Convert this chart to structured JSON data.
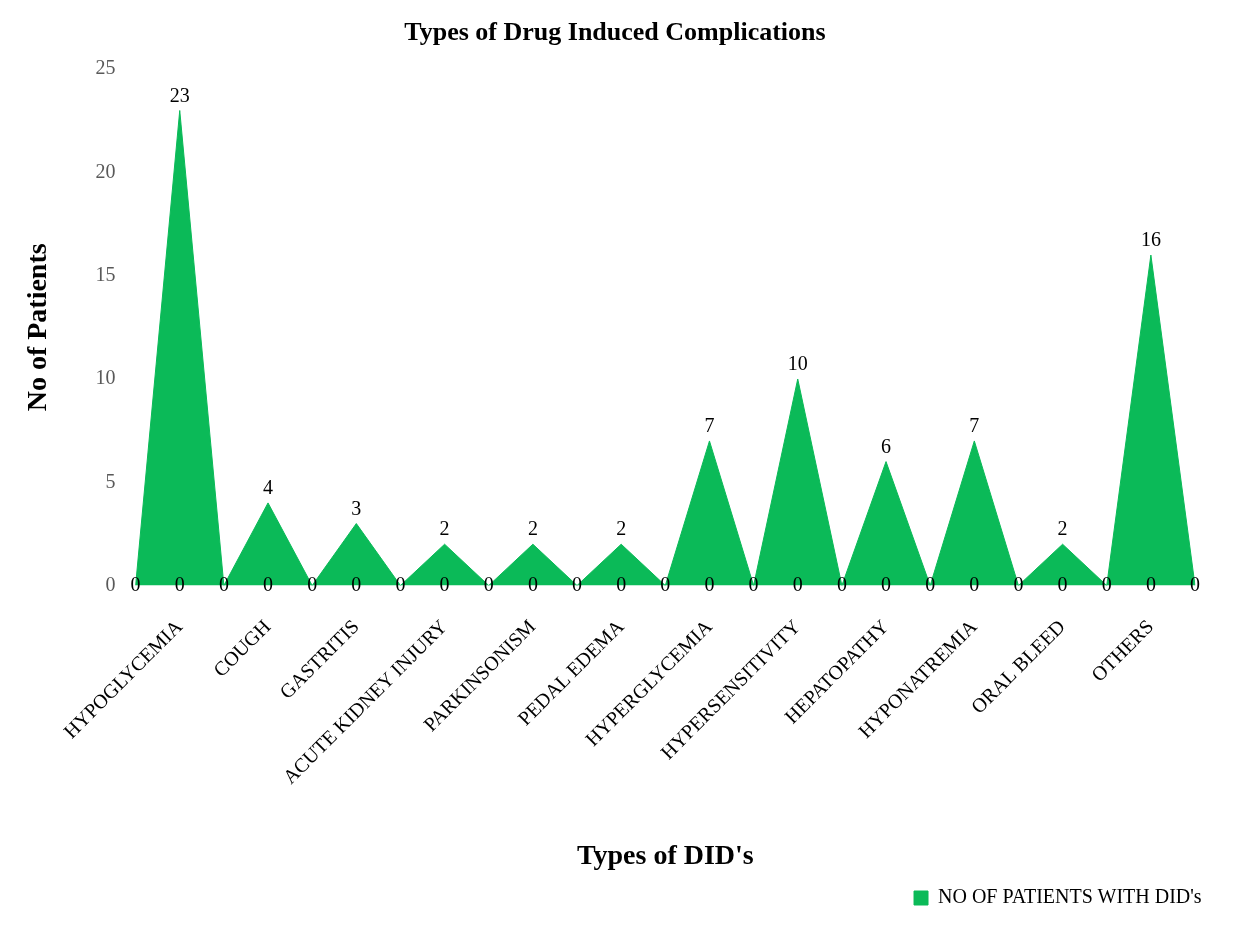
{
  "chart_data": {
    "type": "area",
    "title": "Types of Drug Induced Complications",
    "xlabel": "Types of DID's",
    "ylabel": "No of Patients",
    "categories": [
      null,
      "HYPOGLYCEMIA",
      null,
      "COUGH",
      null,
      "GASTRITIS",
      null,
      "ACUTE KIDNEY INJURY",
      null,
      "PARKINSONISM",
      null,
      "PEDAL EDEMA",
      null,
      "HYPERGLYCEMIA",
      null,
      "HYPERSENSITIVITY",
      null,
      "HEPATOPATHY",
      null,
      "HYPONATREMIA",
      null,
      "ORAL BLEED",
      null,
      "OTHERS",
      null
    ],
    "series": [
      {
        "name": "NO OF PATIENTS WITH DID's",
        "color": "#0bba58",
        "values": [
          0,
          23,
          0,
          4,
          0,
          3,
          0,
          2,
          0,
          2,
          0,
          2,
          0,
          7,
          0,
          10,
          0,
          6,
          0,
          7,
          0,
          2,
          0,
          16,
          0
        ]
      }
    ],
    "data_labels": true,
    "annotations": [
      {
        "text": "0",
        "x": "HYPOGLYCEMIA",
        "y": 0
      },
      {
        "text": "0",
        "x": "COUGH",
        "y": 0
      },
      {
        "text": "0",
        "x": "GASTRITIS",
        "y": 0
      },
      {
        "text": "0",
        "x": "ACUTE KIDNEY INJURY",
        "y": 0
      },
      {
        "text": "0",
        "x": "PARKINSONISM",
        "y": 0
      },
      {
        "text": "0",
        "x": "PEDAL EDEMA",
        "y": 0
      },
      {
        "text": "0",
        "x": "HYPERGLYCEMIA",
        "y": 0
      },
      {
        "text": "0",
        "x": "HYPERSENSITIVITY",
        "y": 0
      },
      {
        "text": "0",
        "x": "HEPATOPATHY",
        "y": 0
      },
      {
        "text": "0",
        "x": "HYPONATREMIA",
        "y": 0
      },
      {
        "text": "0",
        "x": "ORAL BLEED",
        "y": 0
      },
      {
        "text": "0",
        "x": "OTHERS",
        "y": 0
      }
    ],
    "ylim": [
      0,
      25
    ],
    "yticks": [
      0,
      5,
      10,
      15,
      20,
      25
    ],
    "grid": false,
    "legend": "bottom right",
    "marker": "none"
  }
}
